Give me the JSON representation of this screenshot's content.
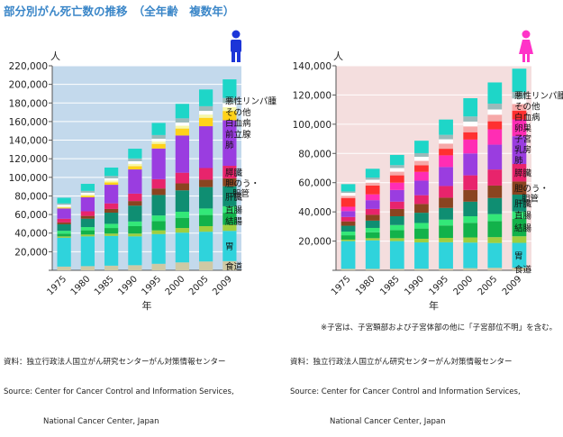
{
  "page_title": "部分別がん死亡数の推移　（全年齢　複数年）",
  "note": "※子宮は、子宮頚部および子宮体部の他に「子宮部位不明」を含む。",
  "chart_data": [
    {
      "type": "bar",
      "id": "male",
      "sex_icon": "male-person-icon",
      "unit_label": "人",
      "xlabel": "年",
      "ylim": [
        0,
        220000
      ],
      "yticks": [
        0,
        20000,
        40000,
        60000,
        80000,
        100000,
        120000,
        140000,
        160000,
        180000,
        200000,
        220000
      ],
      "ytick_labels": [
        "",
        "20,000",
        "40,000",
        "60,000",
        "80,000",
        "100,000",
        "120,000",
        "140,000",
        "160,000",
        "180,000",
        "200,000",
        "220,000"
      ],
      "categories": [
        "1975",
        "1980",
        "1985",
        "1990",
        "1995",
        "2000",
        "2005",
        "2009"
      ],
      "background": "#c3d9ec",
      "series": [
        {
          "name": "食道",
          "color": "#cfc9a4",
          "values": [
            4000,
            4500,
            5000,
            5500,
            7000,
            8500,
            9500,
            9900
          ]
        },
        {
          "name": "胃",
          "color": "#2fd3dc",
          "values": [
            31000,
            32000,
            32000,
            31000,
            32000,
            32000,
            32000,
            32500
          ]
        },
        {
          "name": "",
          "color": "#9fcf3f",
          "values": [
            1500,
            2000,
            2500,
            3000,
            4000,
            5000,
            6000,
            6500
          ]
        },
        {
          "name": "結腸",
          "color": "#12b24a",
          "values": [
            3000,
            4500,
            6000,
            8000,
            10000,
            11000,
            12000,
            13000
          ]
        },
        {
          "name": "直腸",
          "color": "#33e878",
          "values": [
            3000,
            3500,
            4500,
            5000,
            6000,
            6500,
            7000,
            7000
          ]
        },
        {
          "name": "肝臓",
          "color": "#0f8e72",
          "values": [
            7000,
            9000,
            12000,
            17000,
            22000,
            23000,
            23000,
            21500
          ]
        },
        {
          "name": "胆のう・胆管",
          "color": "#8a4420",
          "values": [
            2000,
            3000,
            4000,
            5000,
            7000,
            7500,
            8000,
            8500
          ]
        },
        {
          "name": "膵臓",
          "color": "#e8246c",
          "values": [
            4000,
            5000,
            6000,
            8000,
            10000,
            11500,
            12500,
            13500
          ]
        },
        {
          "name": "肺",
          "color": "#9a3de0",
          "values": [
            11000,
            15000,
            20000,
            26000,
            33000,
            40000,
            45000,
            49000
          ]
        },
        {
          "name": "前立腺",
          "color": "#ffd21a",
          "values": [
            1000,
            1500,
            2500,
            3500,
            5000,
            7500,
            9000,
            10000
          ]
        },
        {
          "name": "",
          "color": "#f8f8a8",
          "values": [
            1000,
            1500,
            2000,
            2500,
            2500,
            3000,
            3500,
            4000
          ]
        },
        {
          "name": "白血病",
          "color": "#ffffff",
          "values": [
            2000,
            2000,
            2500,
            2800,
            3000,
            3500,
            4000,
            4500
          ]
        },
        {
          "name": "悪性リンパ腫",
          "color": "#9ababa",
          "values": [
            1500,
            2000,
            2500,
            3000,
            4000,
            4500,
            5000,
            5500
          ]
        },
        {
          "name": "その他",
          "color": "#1ed6c8",
          "values": [
            6000,
            7500,
            9000,
            10500,
            13000,
            15500,
            18000,
            20000
          ]
        }
      ],
      "label_order_top_to_bottom": [
        "悪性リンパ腫",
        "その他",
        "白血病",
        "前立腺",
        "肺",
        "膵臓",
        "胆のう・胆管",
        "肝臓",
        "直腸",
        "結腸",
        "胃",
        "食道"
      ]
    },
    {
      "type": "bar",
      "id": "female",
      "sex_icon": "female-person-icon",
      "unit_label": "人",
      "xlabel": "年",
      "ylim": [
        0,
        140000
      ],
      "yticks": [
        0,
        20000,
        40000,
        60000,
        80000,
        100000,
        120000,
        140000
      ],
      "ytick_labels": [
        "",
        "20,000",
        "40,000",
        "60,000",
        "80,000",
        "100,000",
        "120,000",
        "140,000"
      ],
      "categories": [
        "1975",
        "1980",
        "1985",
        "1990",
        "1995",
        "2000",
        "2005",
        "2009"
      ],
      "background": "#f4dede",
      "series": [
        {
          "name": "食道",
          "color": "#cfc9a4",
          "values": [
            1000,
            1000,
            1000,
            1100,
            1200,
            1500,
            1700,
            1800
          ]
        },
        {
          "name": "胃",
          "color": "#2fd3dc",
          "values": [
            19000,
            19500,
            19000,
            18000,
            18000,
            17500,
            17000,
            17000
          ]
        },
        {
          "name": "",
          "color": "#9fcf3f",
          "values": [
            1000,
            1500,
            2000,
            2500,
            3000,
            3500,
            4000,
            4500
          ]
        },
        {
          "name": "結腸",
          "color": "#12b24a",
          "values": [
            3000,
            4000,
            5500,
            7000,
            8500,
            10000,
            11000,
            12000
          ]
        },
        {
          "name": "直腸",
          "color": "#33e878",
          "values": [
            2500,
            3000,
            3500,
            3800,
            4000,
            4500,
            4800,
            5000
          ]
        },
        {
          "name": "肝臓",
          "color": "#0f8e72",
          "values": [
            4000,
            5000,
            6000,
            7000,
            8000,
            10000,
            11000,
            11500
          ]
        },
        {
          "name": "胆のう・胆管",
          "color": "#8a4420",
          "values": [
            3000,
            4000,
            5000,
            6000,
            7000,
            8000,
            8500,
            9000
          ]
        },
        {
          "name": "膵臓",
          "color": "#e8246c",
          "values": [
            3000,
            4000,
            5000,
            6000,
            8000,
            10000,
            11000,
            12000
          ]
        },
        {
          "name": "肺",
          "color": "#9a3de0",
          "values": [
            4000,
            6000,
            8000,
            10000,
            13000,
            15000,
            17000,
            19000
          ]
        },
        {
          "name": "乳房",
          "color": "#ff2db4",
          "values": [
            3000,
            4000,
            5000,
            6000,
            8000,
            9500,
            10500,
            11500
          ]
        },
        {
          "name": "子宮",
          "color": "#ff3030",
          "values": [
            6000,
            6000,
            5000,
            4500,
            4500,
            5000,
            5500,
            6000
          ]
        },
        {
          "name": "卵巣",
          "color": "#f6a8a8",
          "values": [
            1500,
            2000,
            2500,
            3000,
            3500,
            4000,
            4500,
            4500
          ]
        },
        {
          "name": "白血病",
          "color": "#ffffff",
          "values": [
            2000,
            2000,
            2500,
            2800,
            3000,
            3300,
            3600,
            3800
          ]
        },
        {
          "name": "悪性リンパ腫",
          "color": "#9ababa",
          "values": [
            1000,
            1500,
            2000,
            2500,
            3000,
            3500,
            4000,
            4500
          ]
        },
        {
          "name": "その他",
          "color": "#1ed6c8",
          "values": [
            5000,
            6000,
            7000,
            8500,
            10500,
            12500,
            14500,
            15900
          ]
        }
      ],
      "label_order_top_to_bottom": [
        "悪性リンパ腫",
        "その他",
        "白血病",
        "卵巣",
        "子宮",
        "乳房",
        "肺",
        "膵臓",
        "胆のう・胆管",
        "肝臓",
        "直腸",
        "結腸",
        "胃",
        "食道"
      ]
    }
  ],
  "sources": [
    {
      "line1": "資料：独立行政法人国立がん研究センターがん対策情報センター",
      "line2": "Source: Center for Cancer Control and Information Services,",
      "line3": "National Cancer Center, Japan"
    },
    {
      "line1": "資料：独立行政法人国立がん研究センターがん対策情報センター",
      "line2": "Source: Center for Cancer Control and Information Services,",
      "line3": "National Cancer Center, Japan"
    }
  ]
}
